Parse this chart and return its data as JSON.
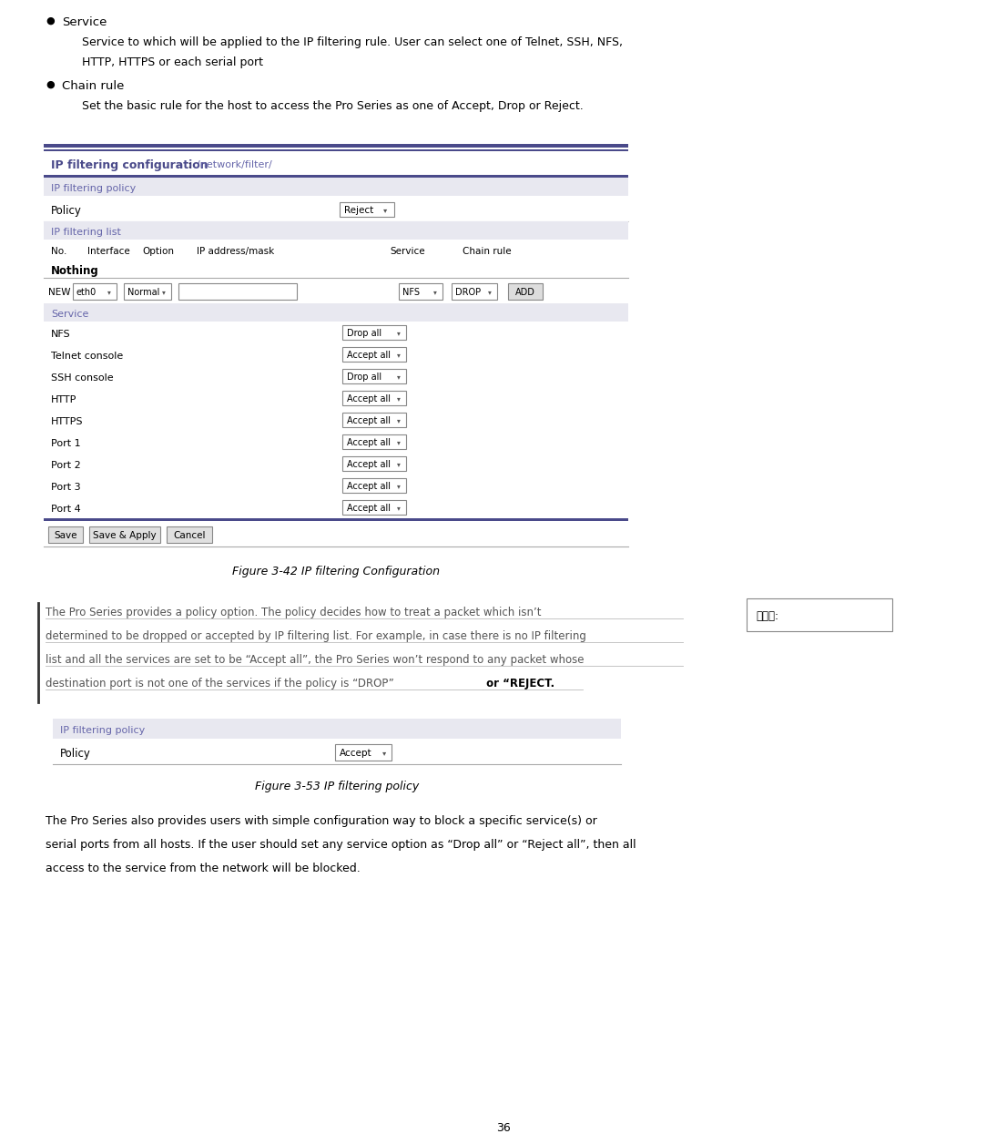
{
  "page_width": 11.06,
  "page_height": 12.56,
  "bg_color": "#ffffff",
  "bullet_color": "#000000",
  "bullet1_title": "Service",
  "bullet1_text1": "Service to which will be applied to the IP filtering rule. User can select one of Telnet, SSH, NFS,",
  "bullet1_text2": "HTTP, HTTPS or each serial port",
  "bullet2_title": "Chain rule",
  "bullet2_text": "Set the basic rule for the host to access the Pro Series as one of Accept, Drop or Reject.",
  "fig1_caption": "Figure 3-42 IP filtering Configuration",
  "fig2_caption": "Figure 3-53 IP filtering policy",
  "para1_line1": "The Pro Series provides a policy option. The policy decides how to treat a packet which isn’t",
  "para1_line2": "determined to be dropped or accepted by IP filtering list. For example, in case there is no IP filtering",
  "para1_line3": "list and all the services are set to be “Accept all”, the Pro Series won’t respond to any packet whose",
  "para1_line4_underline": "destination port is not one of the services if the policy is “DROP”",
  "para1_line4_normal": " or “REJECT.",
  "para2_line1": "The Pro Series also provides users with simple configuration way to block a specific service(s) or",
  "para2_line2": "serial ports from all hosts. If the user should set any service option as “Drop all” or “Reject all”, then all",
  "para2_line3": "access to the service from the network will be blocked.",
  "sidebar_text": "삭제됨:",
  "page_num": "36",
  "header_color": "#4a4a8a",
  "section_bg": "#e8e8f0",
  "border_color": "#4a4a8a",
  "link_color": "#6666aa",
  "normal_text_color": "#000000",
  "underline_text_color": "#555555"
}
